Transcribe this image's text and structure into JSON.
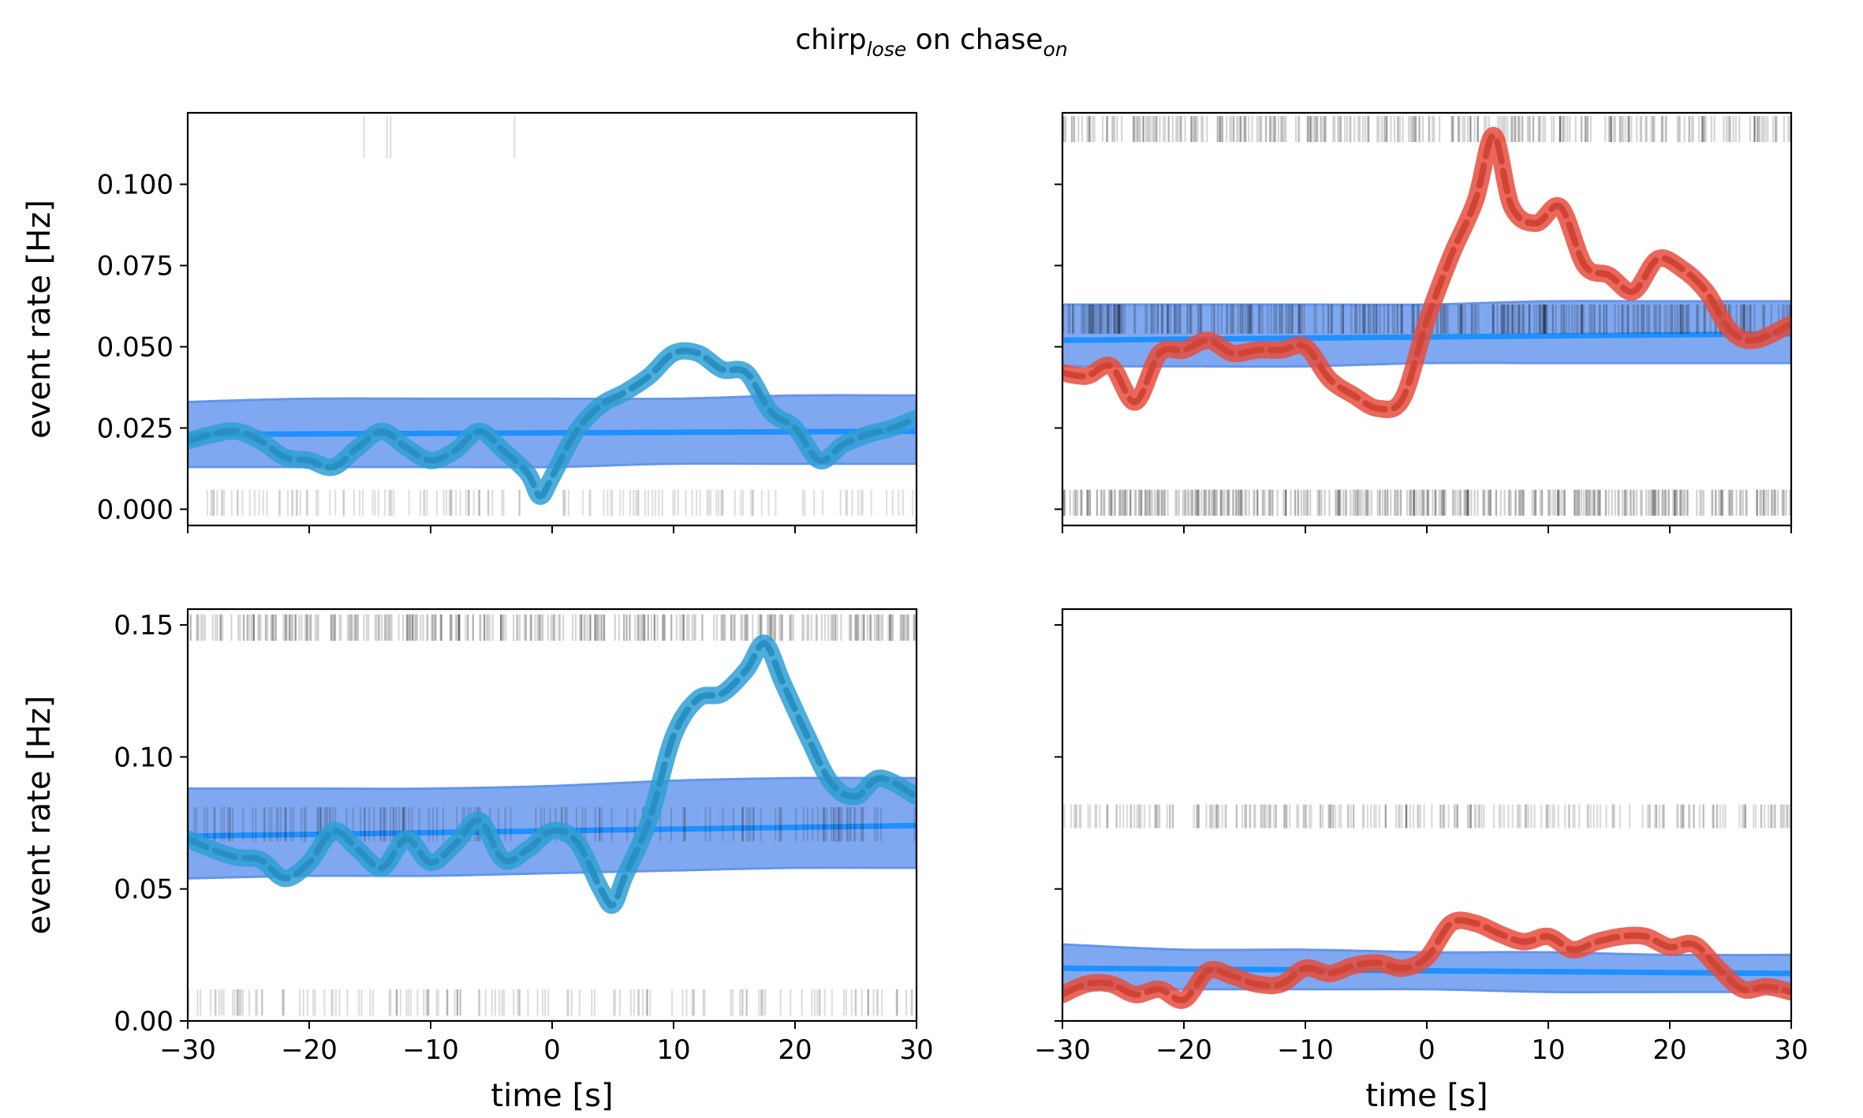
{
  "figure": {
    "title_main_1": "chirp",
    "title_sub_1": "lose",
    "title_main_2": " on chase",
    "title_sub_2": "on"
  },
  "colors": {
    "band": "#6495ED",
    "baseline": "#1E90FF",
    "blue_trace": "#2E9FD6",
    "red_trace": "#E74C3C",
    "raster": "#000000"
  },
  "chart_data": [
    {
      "type": "line",
      "id": "top-left",
      "xlabel": "",
      "ylabel": "event rate [Hz]",
      "xlim": [
        -30,
        30
      ],
      "ylim": [
        -0.005,
        0.122
      ],
      "xticks": [
        -30,
        -20,
        -10,
        0,
        10,
        20,
        30
      ],
      "yticks": [
        0.0,
        0.025,
        0.05,
        0.075,
        0.1
      ],
      "ytick_labels": [
        "0.000",
        "0.025",
        "0.050",
        "0.075",
        "0.100"
      ],
      "show_xtick_labels": false,
      "show_ytick_labels": true,
      "trace_color": "blue_trace",
      "series": [
        {
          "x": [
            -30,
            -28,
            -26,
            -24,
            -22,
            -20,
            -18,
            -16,
            -14,
            -12,
            -10,
            -8,
            -6,
            -4,
            -2,
            -1,
            0,
            2,
            4,
            6,
            8,
            10,
            12,
            14,
            16,
            18,
            20,
            22,
            24,
            26,
            28,
            30
          ],
          "values": [
            0.021,
            0.023,
            0.024,
            0.021,
            0.016,
            0.015,
            0.013,
            0.019,
            0.024,
            0.019,
            0.015,
            0.018,
            0.024,
            0.018,
            0.011,
            0.004,
            0.01,
            0.024,
            0.032,
            0.036,
            0.041,
            0.048,
            0.048,
            0.043,
            0.042,
            0.03,
            0.025,
            0.015,
            0.02,
            0.023,
            0.025,
            0.028
          ]
        }
      ],
      "band": {
        "x": [
          -30,
          -20,
          -10,
          0,
          10,
          20,
          30
        ],
        "lower": [
          0.013,
          0.013,
          0.013,
          0.013,
          0.014,
          0.014,
          0.014
        ],
        "upper": [
          0.033,
          0.034,
          0.034,
          0.034,
          0.034,
          0.035,
          0.035
        ]
      },
      "baseline": {
        "x": [
          -30,
          30
        ],
        "values": [
          0.023,
          0.024
        ]
      },
      "rasters": [
        {
          "y_min": 0.108,
          "y_max": 0.121,
          "events": [
            -15.5,
            -13.6,
            -13.3,
            -3.1
          ],
          "opacity": 0.12
        },
        {
          "y_min": -0.002,
          "y_max": 0.006,
          "density": 1.0,
          "events_seed": 11,
          "event_count": 140,
          "gap_start": -2.5,
          "gap_end": 0.8,
          "opacity": 0.12
        }
      ]
    },
    {
      "type": "line",
      "id": "top-right",
      "xlabel": "",
      "ylabel": "",
      "xlim": [
        -30,
        30
      ],
      "ylim": [
        -0.005,
        0.122
      ],
      "xticks": [
        -30,
        -20,
        -10,
        0,
        10,
        20,
        30
      ],
      "yticks": [
        0.0,
        0.025,
        0.05,
        0.075,
        0.1
      ],
      "show_xtick_labels": false,
      "show_ytick_labels": false,
      "trace_color": "red_trace",
      "series": [
        {
          "x": [
            -30,
            -28,
            -26,
            -24,
            -22,
            -20,
            -18,
            -16,
            -14,
            -12,
            -10,
            -8,
            -6,
            -4,
            -2,
            0,
            2,
            4,
            5.5,
            7,
            9,
            11,
            13,
            15,
            17,
            19,
            21,
            23,
            25,
            27,
            30
          ],
          "values": [
            0.042,
            0.041,
            0.044,
            0.033,
            0.048,
            0.049,
            0.052,
            0.048,
            0.049,
            0.049,
            0.05,
            0.04,
            0.035,
            0.031,
            0.034,
            0.058,
            0.078,
            0.095,
            0.115,
            0.093,
            0.088,
            0.093,
            0.075,
            0.072,
            0.067,
            0.077,
            0.074,
            0.067,
            0.055,
            0.052,
            0.057
          ]
        }
      ],
      "band": {
        "x": [
          -30,
          -20,
          -10,
          0,
          10,
          20,
          30
        ],
        "lower": [
          0.044,
          0.044,
          0.044,
          0.045,
          0.045,
          0.045,
          0.045
        ],
        "upper": [
          0.063,
          0.063,
          0.063,
          0.063,
          0.064,
          0.064,
          0.064
        ]
      },
      "baseline": {
        "x": [
          -30,
          30
        ],
        "values": [
          0.052,
          0.054
        ]
      },
      "rasters": [
        {
          "y_min": 0.113,
          "y_max": 0.121,
          "density": 1.0,
          "events_seed": 21,
          "event_count": 330,
          "gap_start": 1.2,
          "gap_end": 2.0,
          "opacity": 0.16
        },
        {
          "y_min": 0.054,
          "y_max": 0.063,
          "density": 1.0,
          "events_seed": 23,
          "event_count": 380,
          "opacity": 0.16
        },
        {
          "y_min": -0.002,
          "y_max": 0.006,
          "density": 1.0,
          "events_seed": 27,
          "event_count": 420,
          "opacity": 0.18
        }
      ]
    },
    {
      "type": "line",
      "id": "bottom-left",
      "xlabel": "time [s]",
      "ylabel": "event rate [Hz]",
      "xlim": [
        -30,
        30
      ],
      "ylim": [
        0.0,
        0.156
      ],
      "xticks": [
        -30,
        -20,
        -10,
        0,
        10,
        20,
        30
      ],
      "xtick_labels": [
        "−30",
        "−20",
        "−10",
        "0",
        "10",
        "20",
        "30"
      ],
      "yticks": [
        0.0,
        0.05,
        0.1,
        0.15
      ],
      "ytick_labels": [
        "0.00",
        "0.05",
        "0.10",
        "0.15"
      ],
      "show_xtick_labels": true,
      "show_ytick_labels": true,
      "trace_color": "blue_trace",
      "series": [
        {
          "x": [
            -30,
            -28,
            -26,
            -24,
            -22,
            -20,
            -18,
            -16,
            -14,
            -12,
            -10,
            -8,
            -6,
            -4,
            -2,
            0,
            2,
            4,
            5,
            6,
            8,
            10,
            12,
            14,
            16,
            17.5,
            19,
            21,
            23,
            25,
            27,
            30
          ],
          "values": [
            0.069,
            0.065,
            0.062,
            0.061,
            0.054,
            0.06,
            0.072,
            0.065,
            0.058,
            0.069,
            0.06,
            0.067,
            0.076,
            0.061,
            0.065,
            0.072,
            0.068,
            0.05,
            0.044,
            0.055,
            0.076,
            0.108,
            0.122,
            0.124,
            0.133,
            0.143,
            0.128,
            0.108,
            0.09,
            0.085,
            0.092,
            0.085
          ]
        }
      ],
      "band": {
        "x": [
          -30,
          -20,
          -10,
          0,
          10,
          20,
          30
        ],
        "lower": [
          0.054,
          0.055,
          0.055,
          0.056,
          0.057,
          0.058,
          0.058
        ],
        "upper": [
          0.088,
          0.088,
          0.088,
          0.089,
          0.091,
          0.092,
          0.092
        ]
      },
      "baseline": {
        "x": [
          -30,
          30
        ],
        "values": [
          0.07,
          0.074
        ]
      },
      "rasters": [
        {
          "y_min": 0.144,
          "y_max": 0.154,
          "density": 1.0,
          "events_seed": 31,
          "event_count": 360,
          "opacity": 0.16
        },
        {
          "y_min": 0.068,
          "y_max": 0.081,
          "density": 1.0,
          "events_seed": 33,
          "event_count": 160,
          "opacity": 0.14
        },
        {
          "y_min": 0.002,
          "y_max": 0.012,
          "density": 1.0,
          "events_seed": 37,
          "event_count": 150,
          "opacity": 0.13
        }
      ]
    },
    {
      "type": "line",
      "id": "bottom-right",
      "xlabel": "time [s]",
      "ylabel": "",
      "xlim": [
        -30,
        30
      ],
      "ylim": [
        0.0,
        0.156
      ],
      "xticks": [
        -30,
        -20,
        -10,
        0,
        10,
        20,
        30
      ],
      "xtick_labels": [
        "−30",
        "−20",
        "−10",
        "0",
        "10",
        "20",
        "30"
      ],
      "yticks": [
        0.0,
        0.05,
        0.1,
        0.15
      ],
      "show_xtick_labels": true,
      "show_ytick_labels": false,
      "trace_color": "red_trace",
      "series": [
        {
          "x": [
            -30,
            -28,
            -26,
            -24,
            -22,
            -20,
            -18,
            -16,
            -14,
            -12,
            -10,
            -8,
            -6,
            -4,
            -2,
            0,
            2,
            4,
            6,
            8,
            10,
            12,
            14,
            16,
            18,
            20,
            22,
            24,
            26,
            28,
            30
          ],
          "values": [
            0.01,
            0.014,
            0.014,
            0.01,
            0.012,
            0.008,
            0.019,
            0.017,
            0.014,
            0.014,
            0.02,
            0.018,
            0.021,
            0.022,
            0.02,
            0.024,
            0.037,
            0.037,
            0.033,
            0.03,
            0.032,
            0.027,
            0.03,
            0.032,
            0.032,
            0.028,
            0.029,
            0.02,
            0.012,
            0.013,
            0.011
          ]
        }
      ],
      "band": {
        "x": [
          -30,
          -20,
          -10,
          0,
          10,
          20,
          30
        ],
        "lower": [
          0.012,
          0.012,
          0.012,
          0.012,
          0.011,
          0.011,
          0.011
        ],
        "upper": [
          0.029,
          0.027,
          0.027,
          0.026,
          0.026,
          0.025,
          0.025
        ]
      },
      "baseline": {
        "x": [
          -30,
          30
        ],
        "values": [
          0.02,
          0.018
        ]
      },
      "rasters": [
        {
          "y_min": 0.073,
          "y_max": 0.082,
          "density": 1.0,
          "events_seed": 41,
          "event_count": 260,
          "opacity": 0.14
        }
      ]
    }
  ]
}
